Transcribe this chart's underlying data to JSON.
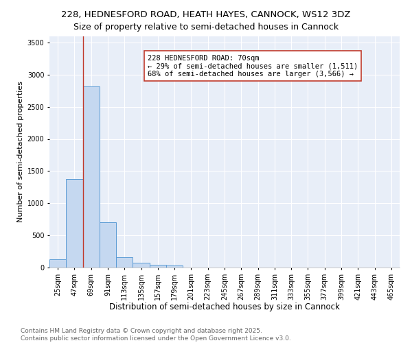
{
  "title": "228, HEDNESFORD ROAD, HEATH HAYES, CANNOCK, WS12 3DZ",
  "subtitle": "Size of property relative to semi-detached houses in Cannock",
  "xlabel": "Distribution of semi-detached houses by size in Cannock",
  "ylabel": "Number of semi-detached properties",
  "categories": [
    "25sqm",
    "47sqm",
    "69sqm",
    "91sqm",
    "113sqm",
    "135sqm",
    "157sqm",
    "179sqm",
    "201sqm",
    "223sqm",
    "245sqm",
    "267sqm",
    "289sqm",
    "311sqm",
    "333sqm",
    "355sqm",
    "377sqm",
    "399sqm",
    "421sqm",
    "443sqm",
    "465sqm"
  ],
  "values": [
    130,
    1380,
    2820,
    700,
    155,
    80,
    45,
    30,
    0,
    0,
    0,
    0,
    0,
    0,
    0,
    0,
    0,
    0,
    0,
    0,
    0
  ],
  "bar_color": "#c5d8f0",
  "bar_edge_color": "#5b9bd5",
  "vline_color": "#c0392b",
  "annotation_title": "228 HEDNESFORD ROAD: 70sqm",
  "annotation_line1": "← 29% of semi-detached houses are smaller (1,511)",
  "annotation_line2": "68% of semi-detached houses are larger (3,566) →",
  "annotation_box_color": "#ffffff",
  "annotation_box_edge": "#c0392b",
  "ylim": [
    0,
    3600
  ],
  "yticks": [
    0,
    500,
    1000,
    1500,
    2000,
    2500,
    3000,
    3500
  ],
  "background_color": "#e8eef8",
  "grid_color": "#ffffff",
  "footer_line1": "Contains HM Land Registry data © Crown copyright and database right 2025.",
  "footer_line2": "Contains public sector information licensed under the Open Government Licence v3.0.",
  "title_fontsize": 9.5,
  "subtitle_fontsize": 9,
  "xlabel_fontsize": 8.5,
  "ylabel_fontsize": 8,
  "tick_fontsize": 7,
  "annotation_fontsize": 7.5,
  "footer_fontsize": 6.5
}
